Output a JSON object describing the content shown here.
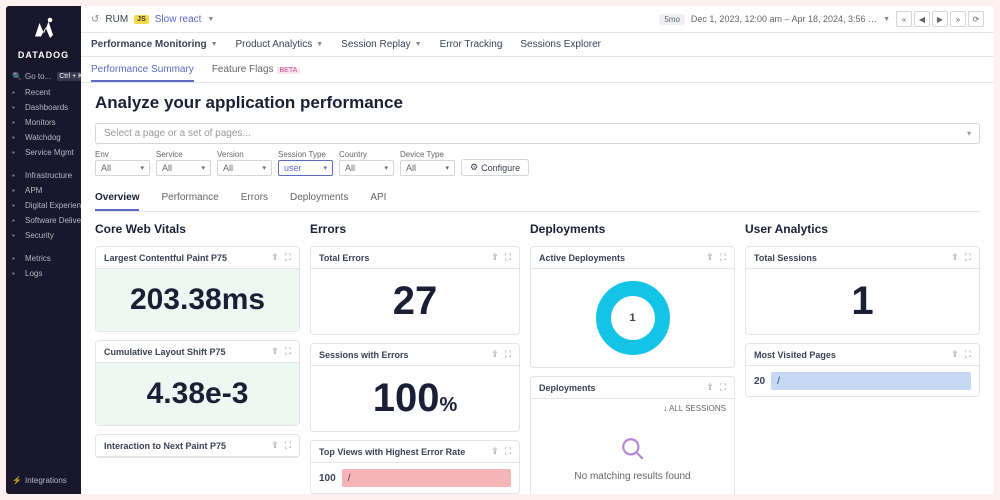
{
  "brand": "DATADOG",
  "sidebar": {
    "search": {
      "label": "Go to...",
      "kbd": "Ctrl + K"
    },
    "items": [
      {
        "label": "Recent",
        "icon": "clock-icon"
      },
      {
        "label": "Dashboards",
        "icon": "grid-icon"
      },
      {
        "label": "Monitors",
        "icon": "display-icon"
      },
      {
        "label": "Watchdog",
        "icon": "dog-icon"
      },
      {
        "label": "Service Mgmt",
        "icon": "gear-icon"
      }
    ],
    "items2": [
      {
        "label": "Infrastructure",
        "icon": "server-icon"
      },
      {
        "label": "APM",
        "icon": "apm-icon"
      },
      {
        "label": "Digital Experience",
        "icon": "browser-icon"
      },
      {
        "label": "Software Delivery",
        "icon": "rocket-icon"
      },
      {
        "label": "Security",
        "icon": "shield-icon"
      }
    ],
    "items3": [
      {
        "label": "Metrics",
        "icon": "chart-icon"
      },
      {
        "label": "Logs",
        "icon": "list-icon"
      }
    ],
    "bottom": {
      "label": "Integrations",
      "icon": "plug-icon"
    }
  },
  "header": {
    "breadcrumb_icon": "↺",
    "breadcrumb": "RUM",
    "js": "JS",
    "app_name": "Slow react",
    "range_badge": "5mo",
    "range": "Dec 1, 2023, 12:00 am – Apr 18, 2024, 3:56 …",
    "nav": [
      "«",
      "◀",
      "▶",
      "»",
      "⟳"
    ]
  },
  "tabs1": [
    "Performance Monitoring",
    "Product Analytics",
    "Session Replay",
    "Error Tracking",
    "Sessions Explorer"
  ],
  "subtabs": [
    {
      "label": "Performance Summary",
      "active": true
    },
    {
      "label": "Feature Flags",
      "badge": "BETA"
    }
  ],
  "title": "Analyze your application performance",
  "page_selector": "Select a page or a set of pages...",
  "filters": [
    {
      "label": "Env",
      "value": "All"
    },
    {
      "label": "Service",
      "value": "All"
    },
    {
      "label": "Version",
      "value": "All"
    },
    {
      "label": "Session Type",
      "value": "user",
      "highlight": true
    },
    {
      "label": "Country",
      "value": "All"
    },
    {
      "label": "Device Type",
      "value": "All"
    }
  ],
  "configure": "Configure",
  "dtabs": [
    "Overview",
    "Performance",
    "Errors",
    "Deployments",
    "API"
  ],
  "vitals": {
    "title": "Core Web Vitals",
    "cards": [
      {
        "title": "Largest Contentful Paint P75",
        "value": "203.38ms"
      },
      {
        "title": "Cumulative Layout Shift P75",
        "value": "4.38e-3"
      },
      {
        "title": "Interaction to Next Paint P75"
      }
    ]
  },
  "errors": {
    "title": "Errors",
    "total": {
      "title": "Total Errors",
      "value": "27"
    },
    "sessions": {
      "title": "Sessions with Errors",
      "value": "100",
      "unit": "%"
    },
    "topviews": {
      "title": "Top Views with Highest Error Rate",
      "val": "100",
      "path": "/"
    }
  },
  "deployments": {
    "title": "Deployments",
    "active": {
      "title": "Active Deployments",
      "value": "1",
      "ring_color": "#14c4e6"
    },
    "list": {
      "title": "Deployments",
      "all": "ALL SESSIONS",
      "empty": "No matching results found"
    }
  },
  "users": {
    "title": "User Analytics",
    "sessions": {
      "title": "Total Sessions",
      "value": "1"
    },
    "pages": {
      "title": "Most Visited Pages",
      "val": "20",
      "path": "/"
    }
  },
  "icons": {
    "share": "⇪",
    "expand": "⛶",
    "settings": "⚙"
  }
}
